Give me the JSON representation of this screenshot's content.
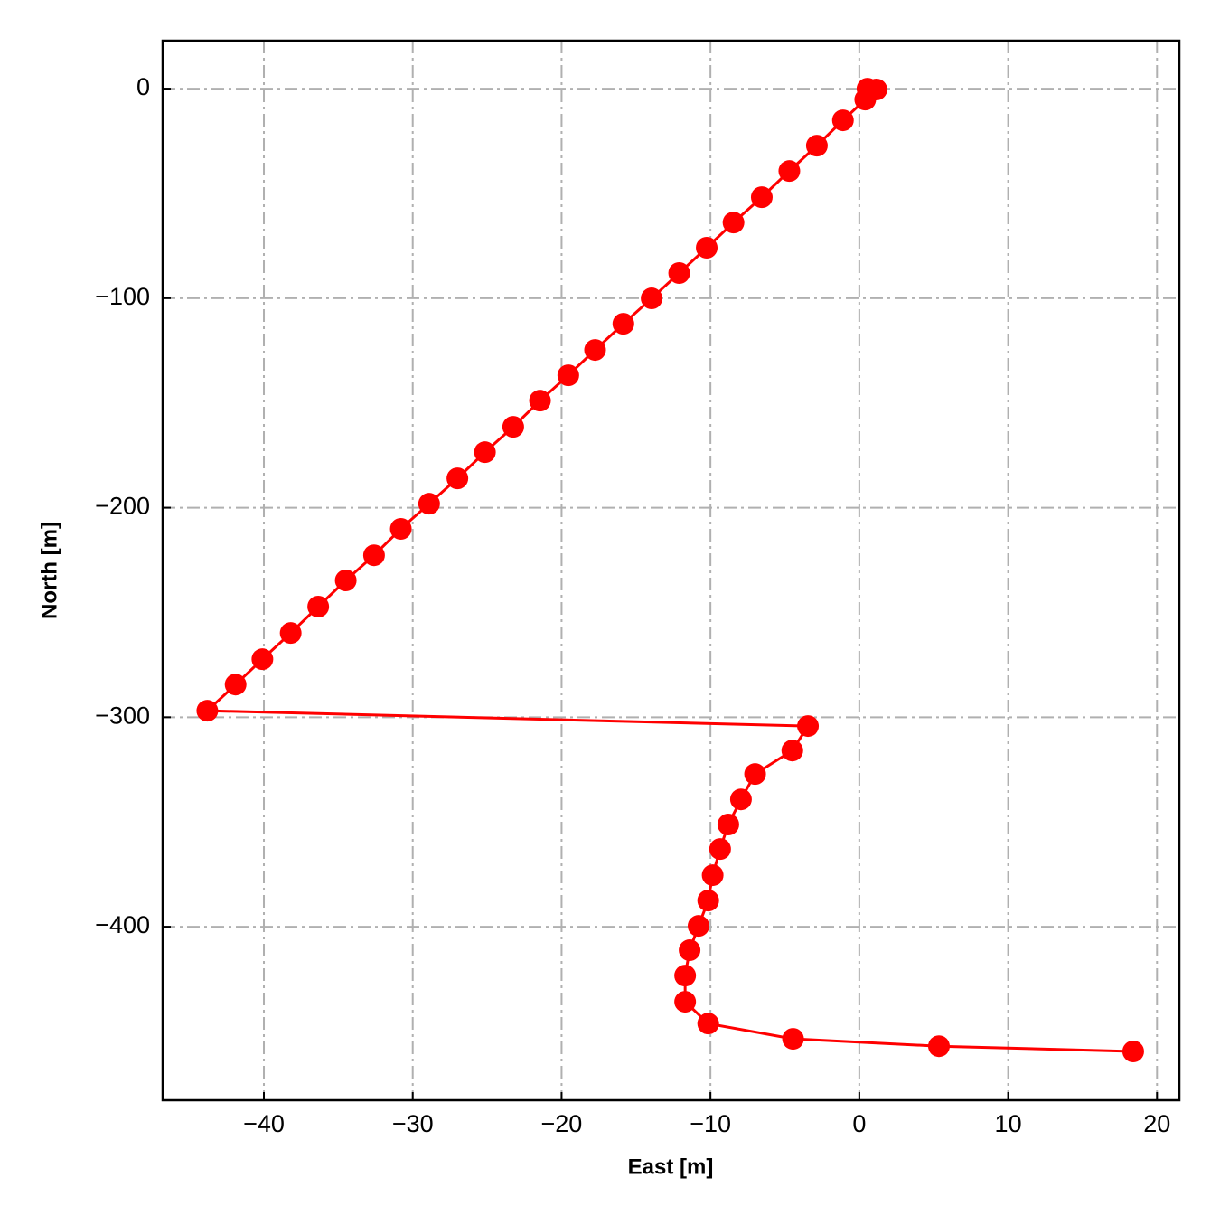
{
  "chart_data": {
    "type": "line",
    "xlabel": "East [m]",
    "ylabel": "North [m]",
    "x": [
      0.55,
      1.15,
      0.4,
      -1.1,
      -2.85,
      -4.7,
      -6.55,
      -8.45,
      -10.25,
      -12.1,
      -13.95,
      -15.85,
      -17.75,
      -19.55,
      -21.45,
      -23.25,
      -25.15,
      -27.0,
      -28.9,
      -30.8,
      -32.6,
      -34.5,
      -36.35,
      -38.2,
      -40.1,
      -41.9,
      -43.8,
      -3.45,
      -4.5,
      -7.0,
      -7.95,
      -8.8,
      -9.35,
      -9.85,
      -10.15,
      -10.8,
      -11.4,
      -11.7,
      -11.7,
      -10.15,
      -4.45,
      5.35,
      18.4
    ],
    "values": [
      0,
      -0.4,
      -5.2,
      -15.1,
      -27.2,
      -39.3,
      -51.8,
      -63.9,
      -75.9,
      -88.0,
      -100.1,
      -112.2,
      -124.7,
      -136.8,
      -148.9,
      -161.4,
      -173.5,
      -186.0,
      -198.1,
      -210.1,
      -222.7,
      -234.7,
      -247.2,
      -259.8,
      -272.3,
      -284.4,
      -296.9,
      -304.2,
      -315.9,
      -327.1,
      -339.2,
      -351.2,
      -362.9,
      -375.4,
      -387.5,
      -399.6,
      -411.2,
      -423.3,
      -435.8,
      -446.2,
      -453.5,
      -457.0,
      -459.5
    ],
    "color": "#ff0000",
    "xlim": [
      -46.8,
      21.5
    ],
    "xticks": [
      {
        "value": -40,
        "label": "−40"
      },
      {
        "value": -30,
        "label": "−30"
      },
      {
        "value": -20,
        "label": "−20"
      },
      {
        "value": -10,
        "label": "−10"
      },
      0,
      10,
      20
    ],
    "ylim": [
      -482.8,
      22.9
    ],
    "yticks": [
      {
        "value": -400,
        "label": "−400"
      },
      {
        "value": -300,
        "label": "−300"
      },
      {
        "value": -200,
        "label": "−200"
      },
      {
        "value": -100,
        "label": "−100"
      },
      0
    ],
    "grid": true
  }
}
